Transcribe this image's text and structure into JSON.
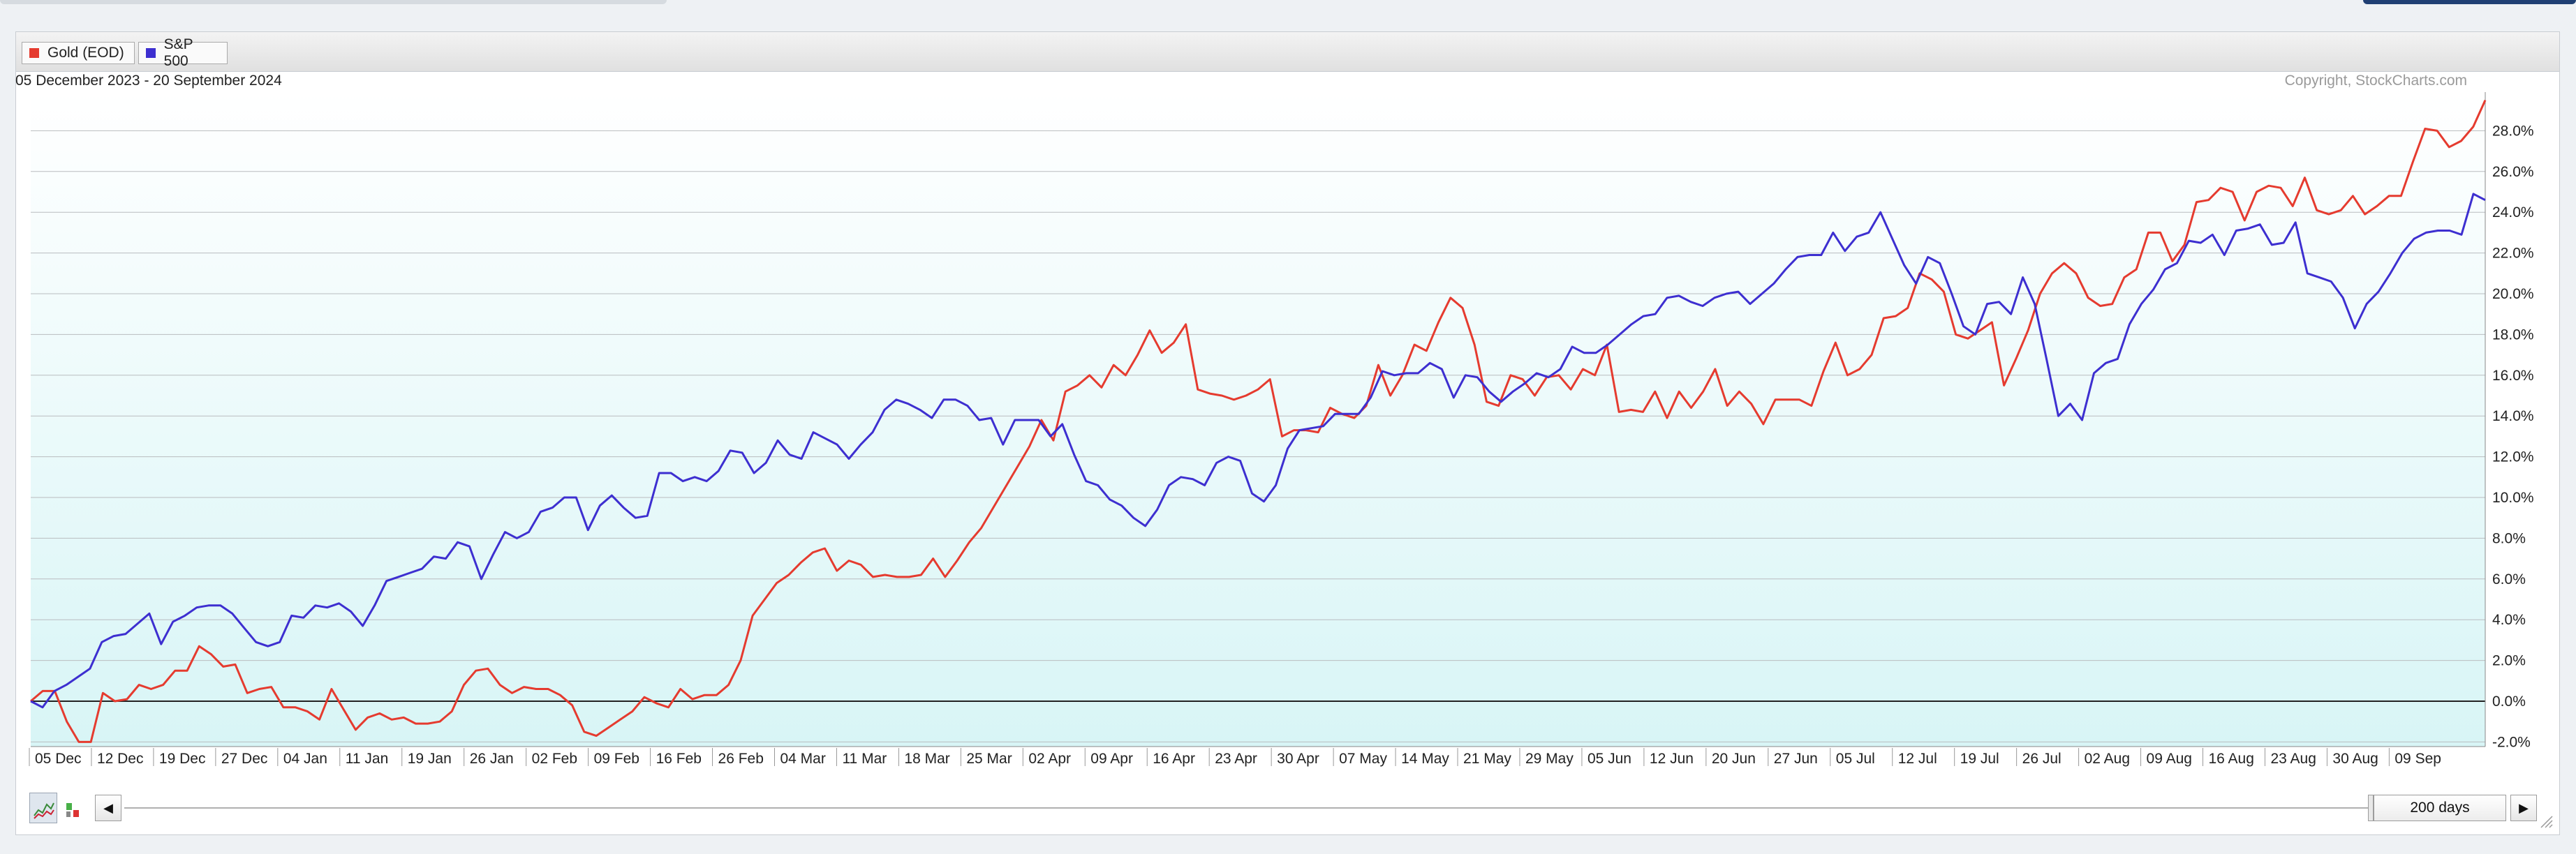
{
  "legend": {
    "gold": {
      "label": "Gold (EOD)",
      "color": "#e53b2f"
    },
    "sp500": {
      "label": "S&P 500",
      "color": "#3d2fd0"
    }
  },
  "date_range": "05 December 2023 - 20 September 2024",
  "copyright": "Copyright, StockCharts.com",
  "period_label": "200 days",
  "chart_data": {
    "type": "line",
    "x_tick_labels": [
      "05 Dec",
      "12 Dec",
      "19 Dec",
      "27 Dec",
      "04 Jan",
      "11 Jan",
      "19 Jan",
      "26 Jan",
      "02 Feb",
      "09 Feb",
      "16 Feb",
      "26 Feb",
      "04 Mar",
      "11 Mar",
      "18 Mar",
      "25 Mar",
      "02 Apr",
      "09 Apr",
      "16 Apr",
      "23 Apr",
      "30 Apr",
      "07 May",
      "14 May",
      "21 May",
      "29 May",
      "05 Jun",
      "12 Jun",
      "20 Jun",
      "27 Jun",
      "05 Jul",
      "12 Jul",
      "19 Jul",
      "26 Jul",
      "02 Aug",
      "09 Aug",
      "16 Aug",
      "23 Aug",
      "30 Aug",
      "09 Sep"
    ],
    "y_tick_labels": [
      "28.0%",
      "26.0%",
      "24.0%",
      "22.0%",
      "20.0%",
      "18.0%",
      "16.0%",
      "14.0%",
      "12.0%",
      "10.0%",
      "8.0%",
      "6.0%",
      "4.0%",
      "2.0%",
      "0.0%",
      "-2.0%"
    ],
    "ylim": [
      -2.5,
      30
    ],
    "y_unit": "%",
    "reference_line": 0,
    "grid": true,
    "series": [
      {
        "name": "Gold (EOD)",
        "color": "#e53b2f",
        "values": [
          0.0,
          0.5,
          0.5,
          -1.0,
          -2.0,
          -2.0,
          0.4,
          0.0,
          0.1,
          0.8,
          0.6,
          0.8,
          1.5,
          1.5,
          2.7,
          2.3,
          1.7,
          1.8,
          0.4,
          0.6,
          0.7,
          -0.3,
          -0.3,
          -0.5,
          -0.9,
          0.6,
          -0.4,
          -1.4,
          -0.8,
          -0.6,
          -0.9,
          -0.8,
          -1.1,
          -1.1,
          -1.0,
          -0.5,
          0.8,
          1.5,
          1.6,
          0.8,
          0.4,
          0.7,
          0.6,
          0.6,
          0.3,
          -0.2,
          -1.5,
          -1.7,
          -1.3,
          -0.9,
          -0.5,
          0.2,
          -0.1,
          -0.3,
          0.6,
          0.1,
          0.3,
          0.3,
          0.8,
          2.0,
          4.2,
          5.0,
          5.8,
          6.2,
          6.8,
          7.3,
          7.5,
          6.4,
          6.9,
          6.7,
          6.1,
          6.2,
          6.1,
          6.1,
          6.2,
          7.0,
          6.1,
          6.9,
          7.8,
          8.5,
          9.5,
          10.5,
          11.5,
          12.5,
          13.8,
          12.8,
          15.2,
          15.5,
          16.0,
          15.4,
          16.5,
          16.0,
          17.0,
          18.2,
          17.1,
          17.6,
          18.5,
          15.3,
          15.1,
          15.0,
          14.8,
          15.0,
          15.3,
          15.8,
          13.0,
          13.3,
          13.3,
          13.2,
          14.4,
          14.1,
          13.9,
          14.5,
          16.5,
          15.0,
          16.0,
          17.5,
          17.2,
          18.6,
          19.8,
          19.3,
          17.5,
          14.7,
          14.5,
          16.0,
          15.8,
          15.0,
          15.9,
          16.0,
          15.3,
          16.3,
          16.0,
          17.5,
          14.2,
          14.3,
          14.2,
          15.2,
          13.9,
          15.2,
          14.4,
          15.2,
          16.3,
          14.5,
          15.2,
          14.6,
          13.6,
          14.8,
          14.8,
          14.8,
          14.5,
          16.2,
          17.6,
          16.0,
          16.3,
          17.0,
          18.8,
          18.9,
          19.3,
          21.0,
          20.7,
          20.1,
          18.0,
          17.8,
          18.2,
          18.6,
          15.5,
          16.8,
          18.2,
          20.0,
          21.0,
          21.5,
          21.0,
          19.8,
          19.4,
          19.5,
          20.8,
          21.2,
          23.0,
          23.0,
          21.6,
          22.4,
          24.5,
          24.6,
          25.2,
          25.0,
          23.6,
          25.0,
          25.3,
          25.2,
          24.3,
          25.7,
          24.1,
          23.9,
          24.1,
          24.8,
          23.9,
          24.3,
          24.8,
          24.8,
          26.5,
          28.1,
          28.0,
          27.2,
          27.5,
          28.2,
          29.5
        ]
      },
      {
        "name": "S&P 500",
        "color": "#3d2fd0",
        "values": [
          0.0,
          -0.3,
          0.5,
          0.8,
          1.2,
          1.6,
          2.9,
          3.2,
          3.3,
          3.8,
          4.3,
          2.8,
          3.9,
          4.2,
          4.6,
          4.7,
          4.7,
          4.3,
          3.6,
          2.9,
          2.7,
          2.9,
          4.2,
          4.1,
          4.7,
          4.6,
          4.8,
          4.4,
          3.7,
          4.7,
          5.9,
          6.1,
          6.3,
          6.5,
          7.1,
          7.0,
          7.8,
          7.6,
          6.0,
          7.2,
          8.3,
          8.0,
          8.3,
          9.3,
          9.5,
          10.0,
          10.0,
          8.4,
          9.6,
          10.1,
          9.5,
          9.0,
          9.1,
          11.2,
          11.2,
          10.8,
          11.0,
          10.8,
          11.3,
          12.3,
          12.2,
          11.2,
          11.7,
          12.8,
          12.1,
          11.9,
          13.2,
          12.9,
          12.6,
          11.9,
          12.6,
          13.2,
          14.3,
          14.8,
          14.6,
          14.3,
          13.9,
          14.8,
          14.8,
          14.5,
          13.8,
          13.9,
          12.6,
          13.8,
          13.8,
          13.8,
          13.0,
          13.6,
          12.1,
          10.8,
          10.6,
          9.9,
          9.6,
          9.0,
          8.6,
          9.4,
          10.6,
          11.0,
          10.9,
          10.6,
          11.7,
          12.0,
          11.8,
          10.2,
          9.8,
          10.6,
          12.4,
          13.3,
          13.4,
          13.5,
          14.1,
          14.1,
          14.1,
          14.9,
          16.2,
          16.0,
          16.1,
          16.1,
          16.6,
          16.3,
          14.9,
          16.0,
          15.9,
          15.2,
          14.7,
          15.2,
          15.6,
          16.1,
          15.9,
          16.3,
          17.4,
          17.1,
          17.1,
          17.5,
          18.0,
          18.5,
          18.9,
          19.0,
          19.8,
          19.9,
          19.6,
          19.4,
          19.8,
          20.0,
          20.1,
          19.5,
          20.0,
          20.5,
          21.2,
          21.8,
          21.9,
          21.9,
          23.0,
          22.1,
          22.8,
          23.0,
          24.0,
          22.7,
          21.4,
          20.5,
          21.8,
          21.5,
          20.0,
          18.4,
          18.0,
          19.5,
          19.6,
          19.0,
          20.8,
          19.5,
          16.8,
          14.0,
          14.6,
          13.8,
          16.1,
          16.6,
          16.8,
          18.5,
          19.5,
          20.2,
          21.2,
          21.5,
          22.6,
          22.5,
          22.9,
          21.9,
          23.1,
          23.2,
          23.4,
          22.4,
          22.5,
          23.5,
          21.0,
          20.8,
          20.6,
          19.8,
          18.3,
          19.5,
          20.1,
          21.0,
          22.0,
          22.7,
          23.0,
          23.1,
          23.1,
          22.9,
          24.9,
          24.6
        ]
      }
    ]
  }
}
